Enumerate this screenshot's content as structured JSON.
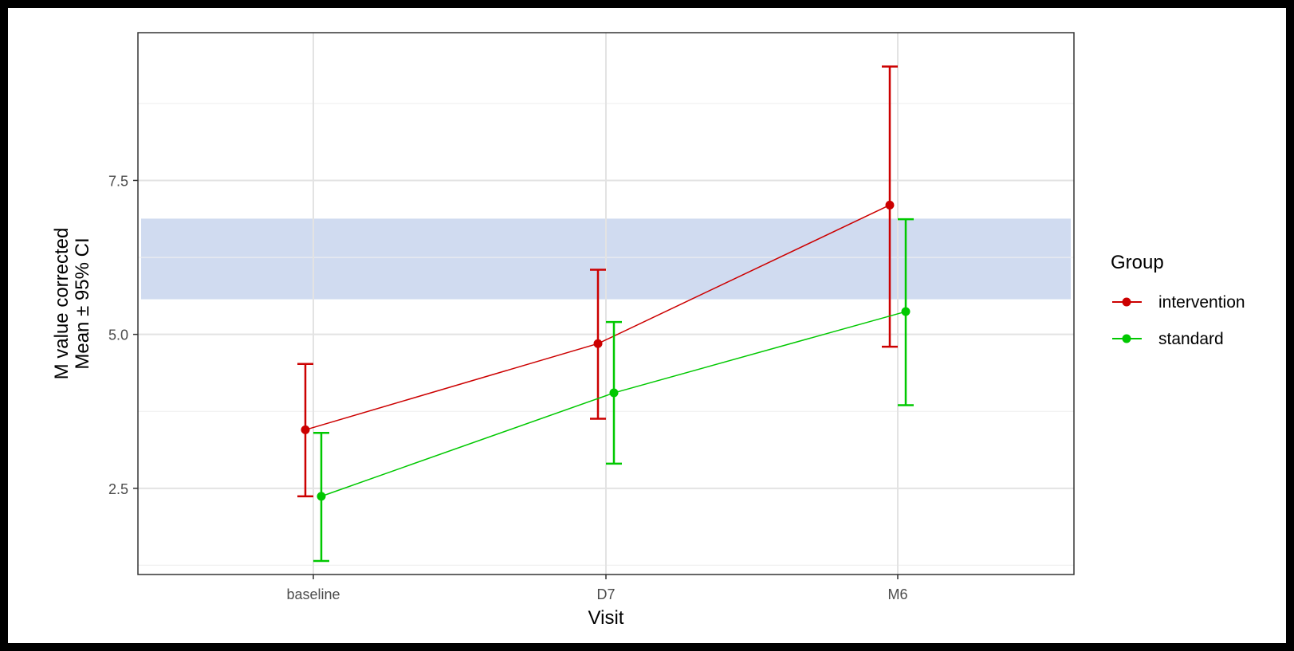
{
  "chart_data": {
    "type": "line",
    "title": "",
    "xlabel": "Visit",
    "ylabel": [
      "M value corrected",
      "Mean ± 95% CI"
    ],
    "categories": [
      "baseline",
      "D7",
      "M6"
    ],
    "y_ticks": [
      2.5,
      5.0,
      7.5
    ],
    "y_tick_labels": [
      "2.5",
      "5.0",
      "7.5"
    ],
    "ylim": [
      1.1,
      9.9
    ],
    "grid": true,
    "legend_title": "Group",
    "legend_position": "right",
    "reference_band": {
      "ymin": 5.57,
      "ymax": 6.88,
      "color": "#cdd9ef"
    },
    "series": [
      {
        "name": "intervention",
        "color": "#cc0000",
        "means": [
          3.45,
          4.85,
          7.1
        ],
        "ci_low": [
          2.37,
          3.63,
          4.8
        ],
        "ci_high": [
          4.52,
          6.05,
          9.35
        ]
      },
      {
        "name": "standard",
        "color": "#00c800",
        "means": [
          2.37,
          4.05,
          5.37
        ],
        "ci_low": [
          1.32,
          2.9,
          3.85
        ],
        "ci_high": [
          3.4,
          5.2,
          6.87
        ]
      }
    ]
  }
}
